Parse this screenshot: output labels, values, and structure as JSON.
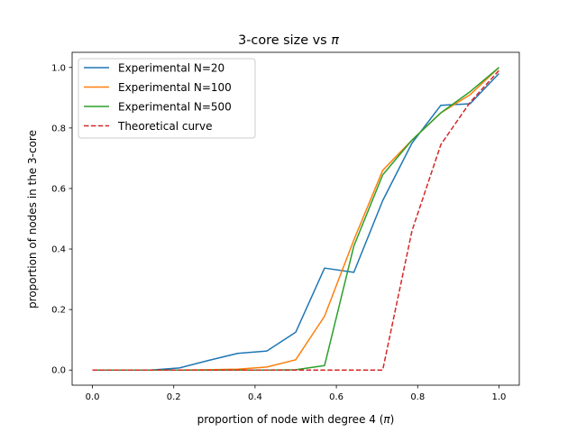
{
  "chart_data": {
    "type": "line",
    "title_prefix": "3-core size vs ",
    "title_symbol": "π",
    "xlabel_prefix": "proportion of node with degree 4 (",
    "xlabel_symbol": "π",
    "xlabel_suffix": ")",
    "ylabel": "proportion of nodes in the 3-core",
    "xlim": [
      -0.05,
      1.05
    ],
    "ylim": [
      -0.05,
      1.05
    ],
    "xticks": [
      0.0,
      0.2,
      0.4,
      0.6,
      0.8,
      1.0
    ],
    "xtick_labels": [
      "0.0",
      "0.2",
      "0.4",
      "0.6",
      "0.8",
      "1.0"
    ],
    "yticks": [
      0.0,
      0.2,
      0.4,
      0.6,
      0.8,
      1.0
    ],
    "ytick_labels": [
      "0.0",
      "0.2",
      "0.4",
      "0.6",
      "0.8",
      "1.0"
    ],
    "legend_position": "upper-left",
    "grid": false,
    "series": [
      {
        "name": "Experimental N=20",
        "color": "#1f77b4",
        "dash": "solid",
        "x": [
          0.0,
          0.071,
          0.143,
          0.214,
          0.286,
          0.357,
          0.429,
          0.5,
          0.571,
          0.643,
          0.714,
          0.786,
          0.857,
          0.929,
          1.0
        ],
        "y": [
          0.0,
          0.0,
          0.0,
          0.007,
          0.032,
          0.055,
          0.063,
          0.125,
          0.337,
          0.323,
          0.56,
          0.75,
          0.875,
          0.88,
          0.98
        ]
      },
      {
        "name": "Experimental N=100",
        "color": "#ff7f0e",
        "dash": "solid",
        "x": [
          0.0,
          0.071,
          0.143,
          0.214,
          0.286,
          0.357,
          0.429,
          0.5,
          0.571,
          0.643,
          0.714,
          0.786,
          0.857,
          0.929,
          1.0
        ],
        "y": [
          0.0,
          0.0,
          0.0,
          0.0,
          0.001,
          0.003,
          0.01,
          0.034,
          0.178,
          0.43,
          0.66,
          0.76,
          0.85,
          0.91,
          1.0
        ]
      },
      {
        "name": "Experimental N=500",
        "color": "#2ca02c",
        "dash": "solid",
        "x": [
          0.0,
          0.071,
          0.143,
          0.214,
          0.286,
          0.357,
          0.429,
          0.5,
          0.571,
          0.643,
          0.714,
          0.786,
          0.857,
          0.929,
          1.0
        ],
        "y": [
          0.0,
          0.0,
          0.0,
          0.0,
          0.0,
          0.0,
          0.0,
          0.001,
          0.015,
          0.41,
          0.645,
          0.76,
          0.85,
          0.92,
          1.0
        ]
      },
      {
        "name": "Theoretical curve",
        "color": "#d62728",
        "dash": "dashed",
        "x": [
          0.0,
          0.071,
          0.143,
          0.214,
          0.286,
          0.357,
          0.429,
          0.5,
          0.571,
          0.643,
          0.714,
          0.786,
          0.857,
          0.929,
          1.0
        ],
        "y": [
          0.0,
          0.0,
          0.0,
          0.0,
          0.0,
          0.0,
          0.0,
          0.0,
          0.0,
          0.0,
          0.0,
          0.46,
          0.745,
          0.885,
          0.99
        ]
      }
    ]
  }
}
